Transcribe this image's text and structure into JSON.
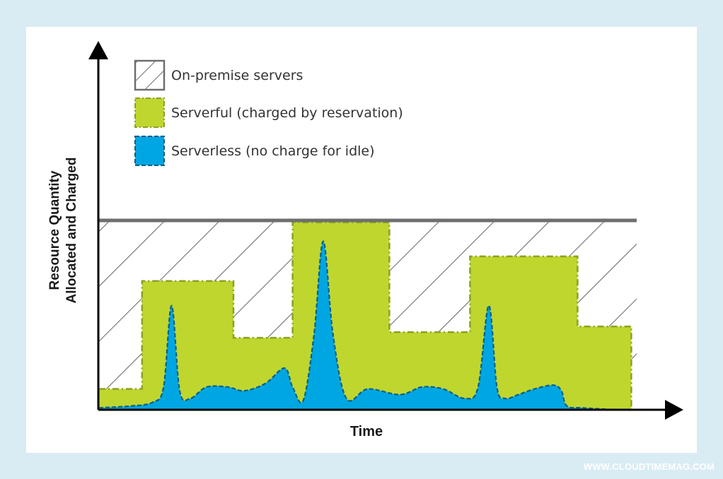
{
  "chart_data": {
    "type": "area",
    "title": "",
    "xlabel": "Time",
    "ylabel": [
      "Resource Quantity",
      "Allocated and Charged"
    ],
    "ylim": [
      0,
      100
    ],
    "xlim": [
      0,
      100
    ],
    "grid": false,
    "legend_placement": "top-left",
    "series": [
      {
        "name": "On-premise servers",
        "kind": "capacity-line-hatched",
        "y": 100
      },
      {
        "name": "Serverful (charged by reservation)",
        "kind": "step",
        "steps": [
          {
            "x0": 0,
            "x1": 8,
            "y": 11
          },
          {
            "x0": 8,
            "x1": 25,
            "y": 68
          },
          {
            "x0": 25,
            "x1": 36,
            "y": 38
          },
          {
            "x0": 36,
            "x1": 54,
            "y": 99
          },
          {
            "x0": 54,
            "x1": 69,
            "y": 41
          },
          {
            "x0": 69,
            "x1": 89,
            "y": 81
          },
          {
            "x0": 89,
            "x1": 99,
            "y": 44
          }
        ]
      },
      {
        "name": "Serverless (no charge for idle)",
        "kind": "smooth-area",
        "x": [
          0,
          6,
          10,
          12,
          13.5,
          15,
          17,
          20,
          24,
          27,
          31,
          34.5,
          36,
          38,
          40,
          41.7,
          43.5,
          46,
          50,
          56,
          60,
          64,
          68,
          70.5,
          72.5,
          74,
          75.5,
          78,
          81,
          84.5,
          86,
          87,
          90,
          96
        ],
        "y": [
          1,
          2,
          4,
          12,
          55,
          10,
          6,
          12,
          12,
          10,
          14,
          22,
          12,
          5,
          40,
          89,
          40,
          6,
          11,
          8,
          12,
          11,
          6,
          12,
          55,
          12,
          6,
          8,
          11,
          13,
          10,
          2,
          1,
          0
        ]
      }
    ]
  },
  "legend": {
    "items": [
      {
        "label": "On-premise servers",
        "swatch": "hatched"
      },
      {
        "label": "Serverful (charged by reservation)",
        "swatch": "green"
      },
      {
        "label": "Serverless (no charge for idle)",
        "swatch": "blue"
      }
    ]
  },
  "colors": {
    "background": "#d9ecf4",
    "card": "#ffffff",
    "capacity_line": "#6e6e6e",
    "hatch": "#6e6e6e",
    "serverful_fill": "#bfd62e",
    "serverful_edge": "#8da020",
    "serverless_fill": "#00a6e2",
    "serverless_edge": "#0b5f86",
    "axis": "#000000"
  },
  "watermark": "WWW.CLOUDTIMEMAG.COM"
}
